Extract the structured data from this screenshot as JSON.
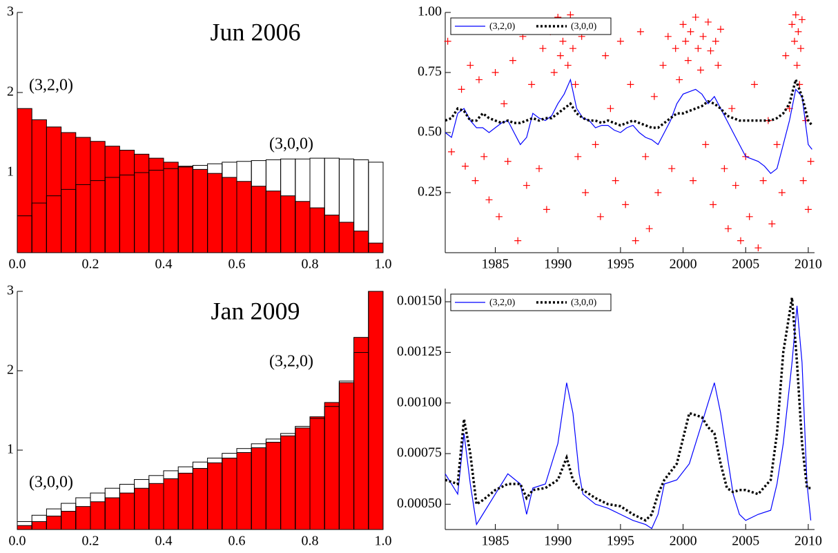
{
  "chart_data": [
    {
      "type": "histogram",
      "title": "Jun 2006",
      "bins": [
        0,
        0.04,
        0.08,
        0.12,
        0.16,
        0.2,
        0.24,
        0.28,
        0.32,
        0.36,
        0.4,
        0.44,
        0.48,
        0.52,
        0.56,
        0.6,
        0.64,
        0.68,
        0.72,
        0.76,
        0.8,
        0.84,
        0.88,
        0.92,
        0.96,
        1
      ],
      "series": [
        {
          "name": "(3,2,0)",
          "color": "#ff0000",
          "values": [
            1.8,
            1.66,
            1.57,
            1.5,
            1.44,
            1.39,
            1.33,
            1.28,
            1.23,
            1.18,
            1.13,
            1.08,
            1.04,
            0.99,
            0.94,
            0.89,
            0.83,
            0.77,
            0.71,
            0.64,
            0.56,
            0.47,
            0.38,
            0.27,
            0.12
          ]
        },
        {
          "name": "(3,0,0)",
          "color": "#ffffff",
          "values": [
            0.46,
            0.62,
            0.71,
            0.79,
            0.85,
            0.9,
            0.94,
            0.97,
            1.0,
            1.03,
            1.05,
            1.07,
            1.09,
            1.11,
            1.13,
            1.14,
            1.15,
            1.16,
            1.17,
            1.17,
            1.18,
            1.18,
            1.17,
            1.16,
            1.13
          ]
        }
      ],
      "xlim": [
        0,
        1
      ],
      "xticks": [
        {
          "value": 0,
          "label": "0.0"
        },
        {
          "value": 0.2,
          "label": "0.2"
        },
        {
          "value": 0.4,
          "label": "0.4"
        },
        {
          "value": 0.6,
          "label": "0.6"
        },
        {
          "value": 0.8,
          "label": "0.8"
        },
        {
          "value": 1,
          "label": "1.0"
        }
      ],
      "ylim": [
        0,
        3
      ],
      "yticks": [
        1,
        2,
        3
      ]
    },
    {
      "type": "line",
      "x": [
        1981,
        1981.5,
        1982,
        1982.5,
        1983,
        1983.5,
        1984,
        1984.5,
        1985,
        1985.5,
        1986,
        1986.5,
        1987,
        1987.5,
        1988,
        1988.5,
        1989,
        1989.5,
        1990,
        1990.5,
        1991,
        1991.5,
        1992,
        1992.5,
        1993,
        1993.5,
        1994,
        1994.5,
        1995,
        1995.5,
        1996,
        1996.5,
        1997,
        1997.5,
        1998,
        1998.5,
        1999,
        1999.5,
        2000,
        2000.5,
        2001,
        2001.5,
        2002,
        2002.5,
        2003,
        2003.5,
        2004,
        2004.5,
        2005,
        2005.5,
        2006,
        2006.5,
        2007,
        2007.5,
        2008,
        2008.5,
        2009,
        2009.5,
        2010,
        2010.3
      ],
      "series": [
        {
          "name": "(3,2,0)",
          "color": "#0000ff",
          "line_style": "solid",
          "values": [
            0.5,
            0.48,
            0.58,
            0.6,
            0.55,
            0.52,
            0.52,
            0.5,
            0.52,
            0.54,
            0.55,
            0.5,
            0.45,
            0.48,
            0.58,
            0.56,
            0.55,
            0.57,
            0.62,
            0.66,
            0.72,
            0.6,
            0.56,
            0.55,
            0.52,
            0.53,
            0.53,
            0.51,
            0.5,
            0.52,
            0.53,
            0.5,
            0.48,
            0.47,
            0.45,
            0.5,
            0.55,
            0.62,
            0.66,
            0.67,
            0.68,
            0.66,
            0.62,
            0.65,
            0.6,
            0.55,
            0.5,
            0.45,
            0.4,
            0.39,
            0.38,
            0.36,
            0.33,
            0.35,
            0.45,
            0.55,
            0.68,
            0.65,
            0.45,
            0.43
          ]
        },
        {
          "name": "(3,0,0)",
          "color": "#000000",
          "line_style": "dotted",
          "values": [
            0.55,
            0.56,
            0.6,
            0.59,
            0.55,
            0.55,
            0.58,
            0.56,
            0.55,
            0.54,
            0.55,
            0.54,
            0.54,
            0.55,
            0.56,
            0.55,
            0.56,
            0.56,
            0.58,
            0.6,
            0.62,
            0.58,
            0.56,
            0.55,
            0.55,
            0.54,
            0.55,
            0.54,
            0.53,
            0.54,
            0.55,
            0.54,
            0.53,
            0.52,
            0.52,
            0.54,
            0.56,
            0.58,
            0.58,
            0.59,
            0.6,
            0.61,
            0.63,
            0.62,
            0.6,
            0.57,
            0.56,
            0.55,
            0.55,
            0.55,
            0.55,
            0.55,
            0.55,
            0.56,
            0.58,
            0.62,
            0.72,
            0.65,
            0.55,
            0.53
          ]
        }
      ],
      "points": {
        "color": "#ff0000",
        "x": [
          1981.2,
          1981.5,
          1982.0,
          1982.3,
          1982.6,
          1983.0,
          1983.4,
          1983.7,
          1984.1,
          1984.5,
          1985.0,
          1985.3,
          1985.7,
          1986.0,
          1986.4,
          1986.8,
          1987.2,
          1987.5,
          1987.9,
          1988.2,
          1988.5,
          1988.8,
          1989.1,
          1989.4,
          1989.7,
          1990.0,
          1990.2,
          1990.4,
          1990.6,
          1990.8,
          1991.0,
          1991.2,
          1991.4,
          1991.6,
          1991.9,
          1992.2,
          1992.6,
          1993.0,
          1993.4,
          1993.8,
          1994.2,
          1994.6,
          1995.0,
          1995.4,
          1995.8,
          1996.2,
          1996.6,
          1997.0,
          1997.3,
          1997.7,
          1998.0,
          1998.4,
          1998.8,
          1999.1,
          1999.4,
          1999.7,
          2000.0,
          2000.2,
          2000.4,
          2000.6,
          2000.8,
          2001.0,
          2001.2,
          2001.4,
          2001.6,
          2001.8,
          2002.0,
          2002.2,
          2002.4,
          2002.6,
          2002.8,
          2003.0,
          2003.3,
          2003.6,
          2003.9,
          2004.2,
          2004.6,
          2005.0,
          2005.3,
          2005.7,
          2006.0,
          2006.4,
          2006.8,
          2007.1,
          2007.5,
          2007.9,
          2008.2,
          2008.5,
          2008.7,
          2008.9,
          2009.0,
          2009.1,
          2009.2,
          2009.3,
          2009.4,
          2009.5,
          2009.6,
          2009.8,
          2010.0,
          2010.2
        ],
        "y": [
          0.88,
          0.42,
          0.95,
          0.68,
          0.36,
          0.78,
          0.3,
          0.72,
          0.4,
          0.22,
          0.75,
          0.15,
          0.62,
          0.38,
          0.8,
          0.05,
          0.9,
          0.28,
          0.7,
          0.95,
          0.35,
          0.85,
          0.18,
          0.92,
          0.75,
          0.98,
          0.82,
          0.88,
          0.94,
          0.78,
          0.99,
          0.85,
          0.7,
          0.4,
          0.9,
          0.25,
          0.95,
          0.45,
          0.15,
          0.82,
          0.6,
          0.3,
          0.88,
          0.2,
          0.7,
          0.05,
          0.92,
          0.4,
          0.1,
          0.65,
          0.25,
          0.78,
          0.9,
          0.35,
          0.85,
          0.72,
          0.95,
          0.88,
          0.8,
          0.92,
          0.3,
          0.98,
          0.85,
          0.76,
          0.9,
          0.45,
          0.96,
          0.84,
          0.2,
          0.88,
          0.78,
          0.93,
          0.35,
          0.1,
          0.6,
          0.28,
          0.05,
          0.4,
          0.15,
          0.7,
          0.02,
          0.3,
          0.55,
          0.12,
          0.45,
          0.25,
          0.82,
          0.6,
          0.95,
          0.88,
          0.99,
          0.78,
          0.92,
          0.7,
          0.85,
          0.97,
          0.3,
          0.55,
          0.18,
          0.38
        ]
      },
      "xlim": [
        1981,
        2010.5
      ],
      "xticks": [
        1985,
        1990,
        1995,
        2000,
        2005,
        2010
      ],
      "ylim": [
        0,
        1
      ],
      "yticks": [
        {
          "value": 0.25,
          "label": "0.25"
        },
        {
          "value": 0.5,
          "label": "0.50"
        },
        {
          "value": 0.75,
          "label": "0.75"
        },
        {
          "value": 1,
          "label": "1.00"
        }
      ],
      "legend": "upper left"
    },
    {
      "type": "histogram",
      "title": "Jan 2009",
      "bins": [
        0,
        0.04,
        0.08,
        0.12,
        0.16,
        0.2,
        0.24,
        0.28,
        0.32,
        0.36,
        0.4,
        0.44,
        0.48,
        0.52,
        0.56,
        0.6,
        0.64,
        0.68,
        0.72,
        0.76,
        0.8,
        0.84,
        0.88,
        0.92,
        0.96,
        1
      ],
      "series": [
        {
          "name": "(3,2,0)",
          "color": "#ff0000",
          "values": [
            0.05,
            0.1,
            0.17,
            0.23,
            0.29,
            0.35,
            0.4,
            0.46,
            0.52,
            0.58,
            0.64,
            0.71,
            0.77,
            0.84,
            0.9,
            0.97,
            1.03,
            1.1,
            1.18,
            1.28,
            1.42,
            1.6,
            1.85,
            2.42,
            3.0
          ]
        },
        {
          "name": "(3,0,0)",
          "color": "#ffffff",
          "values": [
            0.1,
            0.18,
            0.26,
            0.33,
            0.4,
            0.46,
            0.52,
            0.57,
            0.63,
            0.68,
            0.74,
            0.79,
            0.85,
            0.9,
            0.96,
            1.02,
            1.08,
            1.14,
            1.21,
            1.3,
            1.4,
            1.55,
            1.87,
            2.23,
            3.0
          ]
        }
      ],
      "xlim": [
        0,
        1
      ],
      "xticks": [
        {
          "value": 0,
          "label": "0.0"
        },
        {
          "value": 0.2,
          "label": "0.2"
        },
        {
          "value": 0.4,
          "label": "0.4"
        },
        {
          "value": 0.6,
          "label": "0.6"
        },
        {
          "value": 0.8,
          "label": "0.8"
        },
        {
          "value": 1,
          "label": "1.0"
        }
      ],
      "ylim": [
        0,
        3
      ],
      "yticks": [
        1,
        2,
        3
      ]
    },
    {
      "type": "line",
      "x": [
        1981,
        1982,
        1982.5,
        1983,
        1983.5,
        1984,
        1985,
        1986,
        1987,
        1987.5,
        1988,
        1989,
        1990,
        1990.7,
        1991.2,
        1991.7,
        1992,
        1993,
        1994,
        1995,
        1996,
        1997,
        1997.5,
        1998,
        1998.5,
        1999.5,
        2000.5,
        2001.5,
        2002,
        2002.5,
        2003,
        2003.5,
        2004,
        2004.5,
        2005,
        2006,
        2007,
        2007.5,
        2008,
        2008.7,
        2009.1,
        2009.5,
        2009.9,
        2010.2
      ],
      "series": [
        {
          "name": "(3,2,0)",
          "color": "#0000ff",
          "line_style": "solid",
          "values": [
            0.00065,
            0.00055,
            0.00085,
            0.0006,
            0.0004,
            0.00045,
            0.00055,
            0.00065,
            0.0006,
            0.00045,
            0.00058,
            0.0006,
            0.0008,
            0.0011,
            0.00095,
            0.00065,
            0.00055,
            0.0005,
            0.00048,
            0.00045,
            0.00042,
            0.0004,
            0.00038,
            0.00045,
            0.0006,
            0.00062,
            0.0007,
            0.0009,
            0.001,
            0.0011,
            0.00095,
            0.00075,
            0.00055,
            0.00045,
            0.00042,
            0.00045,
            0.00047,
            0.0006,
            0.0008,
            0.0012,
            0.00148,
            0.0012,
            0.0006,
            0.00042
          ]
        },
        {
          "name": "(3,0,0)",
          "color": "#000000",
          "line_style": "dotted",
          "values": [
            0.00062,
            0.0006,
            0.00092,
            0.00075,
            0.0005,
            0.00052,
            0.00057,
            0.0006,
            0.0006,
            0.00053,
            0.00057,
            0.00058,
            0.00062,
            0.00073,
            0.00062,
            0.00058,
            0.00057,
            0.00053,
            0.0005,
            0.00049,
            0.00045,
            0.00042,
            0.00045,
            0.00055,
            0.00062,
            0.0007,
            0.00095,
            0.00093,
            0.00088,
            0.00085,
            0.0007,
            0.00058,
            0.00056,
            0.00057,
            0.00057,
            0.00055,
            0.00062,
            0.00085,
            0.00125,
            0.00152,
            0.0012,
            0.0008,
            0.00058,
            0.00058
          ]
        }
      ],
      "xlim": [
        1981,
        2010.5
      ],
      "xticks": [
        1985,
        1990,
        1995,
        2000,
        2005,
        2010
      ],
      "ylim": [
        0.000375,
        0.001565
      ],
      "yticks": [
        {
          "value": 0.0005,
          "label": "0.00050"
        },
        {
          "value": 0.00075,
          "label": "0.00075"
        },
        {
          "value": 0.001,
          "label": "0.00100"
        },
        {
          "value": 0.00125,
          "label": "0.00125"
        },
        {
          "value": 0.0015,
          "label": "0.00150"
        }
      ],
      "legend": "upper left"
    }
  ]
}
